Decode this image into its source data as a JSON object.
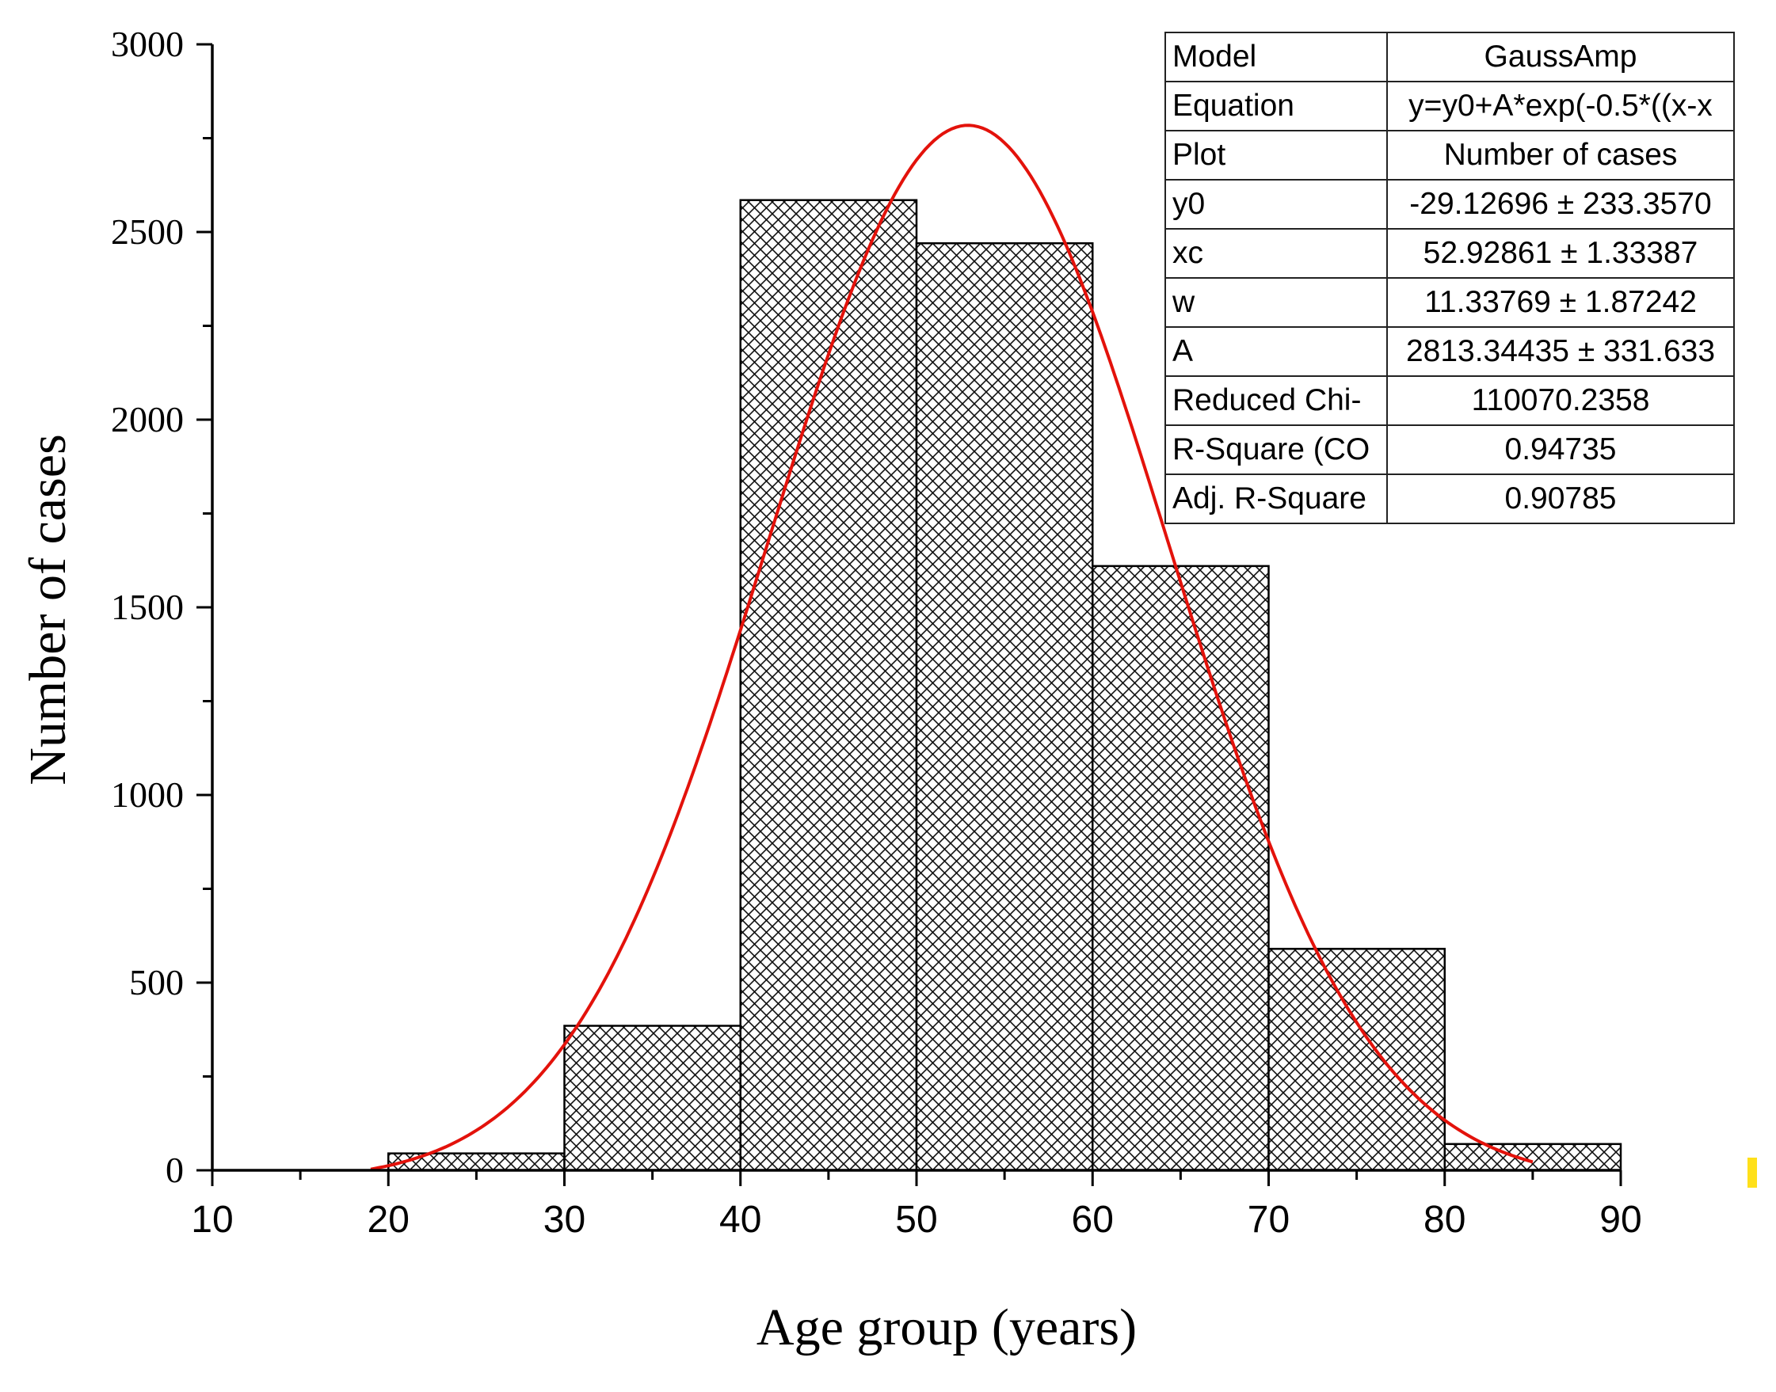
{
  "chart_data": {
    "type": "bar",
    "subtype": "histogram-with-gaussian-fit",
    "xlabel": "Age group (years)",
    "ylabel": "Number of cases",
    "xlim": [
      10,
      90
    ],
    "ylim": [
      0,
      3000
    ],
    "x_ticks": [
      "10",
      "20",
      "30",
      "40",
      "50",
      "60",
      "70",
      "80",
      "90"
    ],
    "y_ticks": [
      "0",
      "500",
      "1000",
      "1500",
      "2000",
      "2500",
      "3000"
    ],
    "bins": [
      {
        "start": 20,
        "end": 30,
        "value": 45
      },
      {
        "start": 30,
        "end": 40,
        "value": 385
      },
      {
        "start": 40,
        "end": 50,
        "value": 2585
      },
      {
        "start": 50,
        "end": 60,
        "value": 2470
      },
      {
        "start": 60,
        "end": 70,
        "value": 1610
      },
      {
        "start": 70,
        "end": 80,
        "value": 590
      },
      {
        "start": 80,
        "end": 90,
        "value": 70
      }
    ],
    "fit": {
      "model": "GaussAmp",
      "y0": -29.12696,
      "xc": 52.92861,
      "w": 11.33769,
      "A": 2813.34435,
      "x_range": [
        19,
        85
      ],
      "color": "#e3120b"
    },
    "bar_fill": "crosshatch",
    "stats_table": [
      {
        "key": "Model",
        "value": "GaussAmp"
      },
      {
        "key": "Equation",
        "value": "y=y0+A*exp(-0.5*((x-x"
      },
      {
        "key": "Plot",
        "value": "Number of cases"
      },
      {
        "key": "y0",
        "value": "-29.12696 ± 233.3570"
      },
      {
        "key": "xc",
        "value": "52.92861 ± 1.33387"
      },
      {
        "key": "w",
        "value": "11.33769 ± 1.87242"
      },
      {
        "key": "A",
        "value": "2813.34435 ± 331.633"
      },
      {
        "key": "Reduced Chi-",
        "value": "110070.2358"
      },
      {
        "key": "R-Square (CO",
        "value": "0.94735"
      },
      {
        "key": "Adj. R-Square",
        "value": "0.90785"
      }
    ]
  }
}
